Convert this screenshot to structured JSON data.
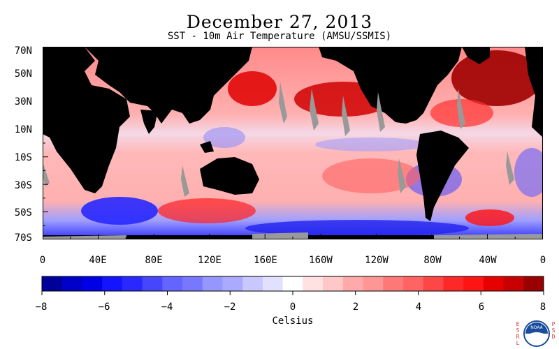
{
  "title": "December 27, 2013",
  "subtitle": "SST - 10m Air Temperature (AMSU/SSMIS)",
  "map": {
    "projection": "equirectangular",
    "lat_range": [
      "70S",
      "70N"
    ],
    "lon_range": [
      "0",
      "0"
    ],
    "lat_labels": [
      "70N",
      "50N",
      "30N",
      "10N",
      "10S",
      "30S",
      "50S",
      "70S"
    ],
    "lon_labels": [
      "0",
      "40E",
      "80E",
      "120E",
      "160E",
      "160W",
      "120W",
      "80W",
      "40W",
      "0"
    ],
    "land_color": "#000000",
    "missing_color": "#999999"
  },
  "colorbar": {
    "tick_labels": [
      "−8",
      "−6",
      "−4",
      "−2",
      "0",
      "2",
      "4",
      "6",
      "8"
    ],
    "label": "Celsius",
    "colors": [
      "#00009a",
      "#0000c8",
      "#0000e6",
      "#1414ff",
      "#2828ff",
      "#4646ff",
      "#6464ff",
      "#7878ff",
      "#9696ff",
      "#aaaaff",
      "#c8c8ff",
      "#e1e1ff",
      "#ffffff",
      "#ffe1e1",
      "#ffc8c8",
      "#ffaaaa",
      "#ff9696",
      "#ff7878",
      "#ff6464",
      "#ff4646",
      "#ff2828",
      "#ff1414",
      "#e60000",
      "#c80000",
      "#9a0000"
    ]
  },
  "logo": {
    "left_text": "ESRL",
    "right_text": "PSD",
    "icon": "noaa-logo-icon"
  }
}
